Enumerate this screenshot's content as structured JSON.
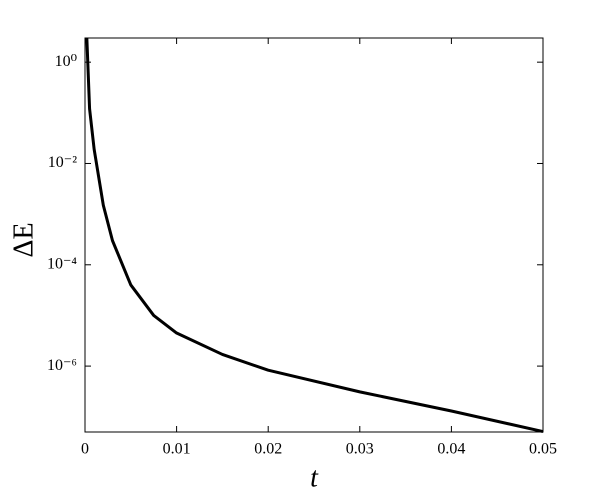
{
  "chart_data": {
    "type": "line",
    "xlabel": "t",
    "ylabel": "ΔE",
    "yscale": "log",
    "grid": false,
    "x": [
      0.0002,
      0.0005,
      0.001,
      0.002,
      0.003,
      0.005,
      0.0075,
      0.01,
      0.015,
      0.02,
      0.03,
      0.04,
      0.05
    ],
    "series": [
      {
        "color": "#000000",
        "values": [
          3,
          0.12,
          0.019,
          0.0015,
          0.0003,
          4e-05,
          1e-05,
          4.5e-06,
          1.7e-06,
          8.3e-07,
          3.1e-07,
          1.3e-07,
          5.1e-08
        ]
      }
    ],
    "xlim": [
      0,
      0.05
    ],
    "ylim": [
      5e-08,
      3
    ],
    "xticks": [
      0,
      0.01,
      0.02,
      0.03,
      0.04,
      0.05
    ],
    "yticks": [
      {
        "value": 1,
        "label": "10⁰"
      },
      {
        "value": 0.01,
        "label": "10⁻²"
      },
      {
        "value": 0.0001,
        "label": "10⁻⁴"
      },
      {
        "value": 1e-06,
        "label": "10⁻⁶"
      }
    ]
  }
}
